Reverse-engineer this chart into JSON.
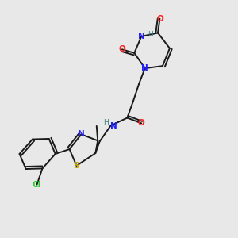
{
  "background_color": "#e8e8e8",
  "bond_color": "#1a1a1a",
  "atom_colors": {
    "N": "#2020ff",
    "O": "#ff2020",
    "S": "#ccaa00",
    "Cl": "#22cc22",
    "H": "#408080",
    "C": "#1a1a1a"
  },
  "figsize": [
    3.0,
    3.0
  ],
  "dpi": 100
}
